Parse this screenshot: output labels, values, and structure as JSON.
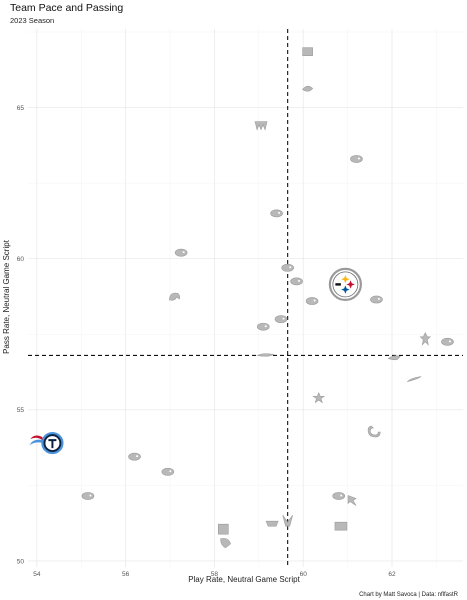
{
  "chart_data": {
    "type": "scatter",
    "title": "Team Pace and Passing",
    "subtitle": "2023 Season",
    "xlabel": "Play Rate, Neutral Game Script",
    "ylabel": "Pass Rate, Neutral Game Script",
    "caption": "Chart by Matt Savoca | Data: nflfastR",
    "xlim": [
      53.8,
      63.6
    ],
    "ylim": [
      49.8,
      67.6
    ],
    "x_ticks": [
      "54",
      "56",
      "58",
      "60",
      "62"
    ],
    "y_ticks": [
      "50",
      "55",
      "60",
      "65"
    ],
    "x_tick_values": [
      54,
      56,
      58,
      60,
      62
    ],
    "y_tick_values": [
      50,
      55,
      60,
      65
    ],
    "vline": 59.65,
    "hline": 56.8,
    "grid": true,
    "highlight_color_pit": "#FFB612",
    "highlight_color_ten": "#4B92DB",
    "logo_color_muted": "#b8b8b8",
    "points": [
      {
        "team": "PIT",
        "x": 60.95,
        "y": 59.15,
        "icon": "steelers-logo",
        "highlight": true
      },
      {
        "team": "TEN",
        "x": 54.35,
        "y": 53.9,
        "icon": "titans-logo",
        "highlight": true
      },
      {
        "team": "CIN",
        "x": 60.1,
        "y": 66.85,
        "icon": "bengals-logo"
      },
      {
        "team": "MIN",
        "x": 60.1,
        "y": 65.6,
        "icon": "vikings-logo"
      },
      {
        "team": "WAS",
        "x": 59.05,
        "y": 64.4,
        "icon": "commanders-logo"
      },
      {
        "team": "HOU",
        "x": 61.2,
        "y": 63.3,
        "icon": "texans-logo"
      },
      {
        "team": "MIA",
        "x": 59.4,
        "y": 61.5,
        "icon": "dolphins-logo"
      },
      {
        "team": "NYJ",
        "x": 57.25,
        "y": 60.2,
        "icon": "jets-logo"
      },
      {
        "team": "JAX",
        "x": 59.65,
        "y": 59.7,
        "icon": "jaguars-logo"
      },
      {
        "team": "BUF",
        "x": 59.85,
        "y": 59.25,
        "icon": "bills-logo"
      },
      {
        "team": "LAR",
        "x": 57.1,
        "y": 58.7,
        "icon": "rams-logo"
      },
      {
        "team": "LV",
        "x": 60.2,
        "y": 58.6,
        "icon": "raiders-logo"
      },
      {
        "team": "BAL",
        "x": 61.65,
        "y": 58.65,
        "icon": "ravens-logo"
      },
      {
        "team": "SEA",
        "x": 59.5,
        "y": 58.0,
        "icon": "seahawks-logo"
      },
      {
        "team": "CAR",
        "x": 59.1,
        "y": 57.75,
        "icon": "panthers-logo"
      },
      {
        "team": "NO",
        "x": 62.75,
        "y": 57.35,
        "icon": "saints-logo"
      },
      {
        "team": "TB",
        "x": 63.25,
        "y": 57.25,
        "icon": "buccaneers-logo"
      },
      {
        "team": "NE",
        "x": 59.15,
        "y": 56.8,
        "icon": "patriots-logo"
      },
      {
        "team": "PHI",
        "x": 62.05,
        "y": 56.7,
        "icon": "eagles-logo"
      },
      {
        "team": "LAC",
        "x": 62.5,
        "y": 56.0,
        "icon": "chargers-logo"
      },
      {
        "team": "DAL",
        "x": 60.35,
        "y": 55.4,
        "icon": "cowboys-logo"
      },
      {
        "team": "IND",
        "x": 61.6,
        "y": 54.3,
        "icon": "colts-logo"
      },
      {
        "team": "DEN",
        "x": 56.2,
        "y": 53.45,
        "icon": "broncos-logo"
      },
      {
        "team": "DET",
        "x": 56.95,
        "y": 52.95,
        "icon": "lions-logo"
      },
      {
        "team": "SF",
        "x": 55.15,
        "y": 52.15,
        "icon": "49ers-logo"
      },
      {
        "team": "CLE",
        "x": 60.8,
        "y": 52.15,
        "icon": "browns-logo"
      },
      {
        "team": "ATL",
        "x": 61.1,
        "y": 52.0,
        "icon": "falcons-logo"
      },
      {
        "team": "NYG",
        "x": 60.85,
        "y": 51.15,
        "icon": "giants-logo"
      },
      {
        "team": "CHI",
        "x": 58.2,
        "y": 51.05,
        "icon": "bears-logo"
      },
      {
        "team": "KC",
        "x": 59.3,
        "y": 51.25,
        "icon": "chiefs-logo"
      },
      {
        "team": "GB",
        "x": 59.65,
        "y": 51.35,
        "icon": "packers-logo"
      },
      {
        "team": "ARI",
        "x": 58.25,
        "y": 50.6,
        "icon": "cardinals-logo"
      }
    ]
  }
}
